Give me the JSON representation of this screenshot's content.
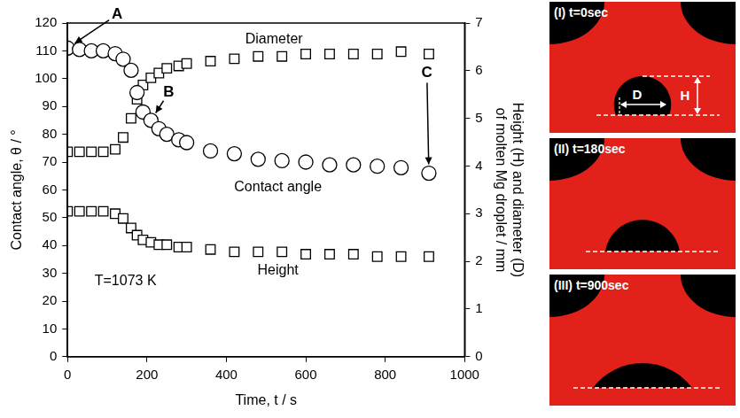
{
  "chart_data": {
    "type": "scatter",
    "x_label": "Time, t / s",
    "y_label": "Contact angle, θ / °",
    "y2_label": "Height (H) and diameter (D) of molten Mg droplet / mm",
    "x": [
      0,
      30,
      60,
      90,
      120,
      140,
      160,
      175,
      190,
      210,
      230,
      250,
      280,
      300,
      360,
      420,
      480,
      540,
      600,
      660,
      720,
      780,
      840,
      910
    ],
    "series": [
      {
        "name": "Contact angle",
        "color": "#000000",
        "marker": "circle",
        "values": [
          111,
          110.5,
          110,
          110,
          109,
          107,
          103,
          95,
          88,
          85,
          82,
          80,
          78,
          77,
          74,
          73,
          71,
          70.5,
          70,
          69,
          69,
          68.5,
          68,
          66
        ]
      },
      {
        "name": "Diameter",
        "color": "#000000",
        "marker": "square",
        "axis": "y2",
        "values": [
          4.3,
          4.3,
          4.3,
          4.3,
          4.35,
          4.6,
          5.0,
          5.4,
          5.7,
          5.85,
          5.95,
          6.05,
          6.1,
          6.15,
          6.2,
          6.25,
          6.3,
          6.3,
          6.35,
          6.35,
          6.35,
          6.35,
          6.4,
          6.35
        ]
      },
      {
        "name": "Height",
        "color": "#000000",
        "marker": "square",
        "axis": "y2",
        "values": [
          3.05,
          3.05,
          3.05,
          3.05,
          3.0,
          2.9,
          2.7,
          2.55,
          2.45,
          2.4,
          2.35,
          2.35,
          2.3,
          2.3,
          2.25,
          2.2,
          2.2,
          2.2,
          2.15,
          2.15,
          2.15,
          2.1,
          2.1,
          2.1
        ]
      }
    ],
    "xlim": [
      0,
      1000
    ],
    "xticks": [
      0,
      200,
      400,
      600,
      800,
      1000
    ],
    "ylim": [
      0,
      120
    ],
    "yticks": [
      0,
      10,
      20,
      30,
      40,
      50,
      60,
      70,
      80,
      90,
      100,
      110,
      120
    ],
    "y2lim": [
      0,
      7
    ],
    "y2ticks": [
      0,
      1,
      2,
      3,
      4,
      5,
      6,
      7
    ],
    "grid": false,
    "annotations": [
      {
        "text": "A",
        "x": 125,
        "y": 123,
        "points_to": {
          "x": 0,
          "y": 111
        }
      },
      {
        "text": "B",
        "x": 255,
        "y": 95,
        "points_to": {
          "x": 210,
          "y": 85
        }
      },
      {
        "text": "C",
        "x": 905,
        "y": 102,
        "points_to": {
          "x": 910,
          "y": 66
        }
      },
      {
        "text": "Diameter",
        "x": 520,
        "y": 114
      },
      {
        "text": "Contact angle",
        "x": 530,
        "y": 61
      },
      {
        "text": "Height",
        "x": 530,
        "y": 31
      },
      {
        "text": "T=1073 K",
        "x": 146,
        "y": 27
      }
    ]
  },
  "panels": [
    {
      "label": "(I) t=0sec",
      "height_label": "H",
      "diameter_label": "D"
    },
    {
      "label": "(II) t=180sec"
    },
    {
      "label": "(III) t=900sec"
    }
  ]
}
